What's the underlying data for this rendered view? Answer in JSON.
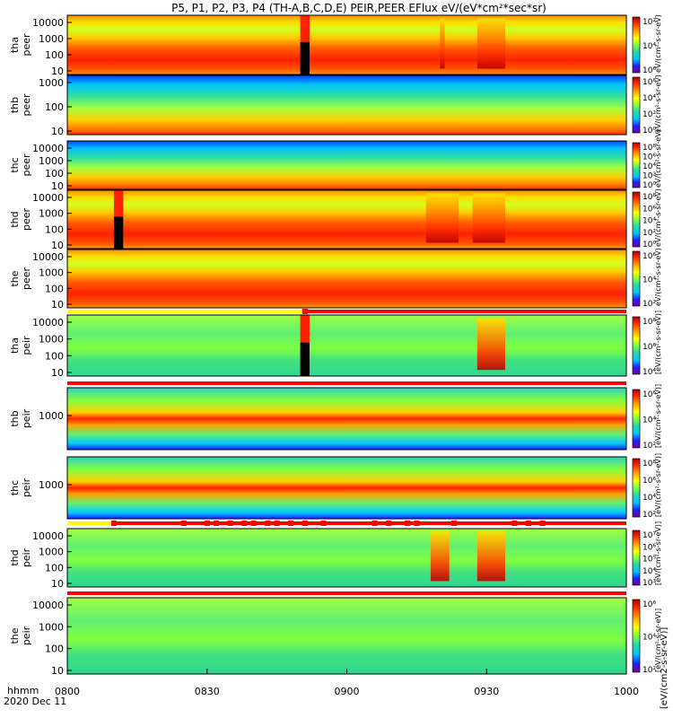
{
  "title": "P5, P1, P2, P3, P4 (TH-A,B,C,D,E) PEIR,PEER EFlux eV/(eV*cm²*sec*sr)",
  "time_axis": {
    "label": "hhmm",
    "date": "2020 Dec 11",
    "range": [
      "0800",
      "1000"
    ],
    "tick_labels": [
      "0800",
      "0830",
      "0900",
      "0930",
      "1000"
    ]
  },
  "colorbar_labels": {
    "peer": "eV/(cm²-s-sr-eV)",
    "peir": "[eV/(cm²-s-sr-eV)]",
    "bottom_full": "[eV/(cm2-s-sr-eV)]"
  },
  "chart_data": [
    {
      "type": "heatmap",
      "probe": "tha",
      "species": "peer",
      "label_top": "tha",
      "label_bottom": "peer",
      "yscale": "log",
      "ytick_labels": [
        "10",
        "100",
        "1000",
        "10000"
      ],
      "colorbar_ticks": [
        "10²",
        "10⁴",
        "10⁶"
      ],
      "gaps": [
        {
          "start": "0850",
          "end": "0852"
        }
      ],
      "bursts": [
        {
          "start": "0920",
          "end": "0921"
        },
        {
          "start": "0928",
          "end": "0934"
        }
      ]
    },
    {
      "type": "heatmap",
      "probe": "thb",
      "species": "peer",
      "label_top": "thb",
      "label_bottom": "peer",
      "yscale": "log",
      "ytick_labels": [
        "10",
        "100",
        "1000"
      ],
      "colorbar_ticks": [
        "10⁶",
        "10⁴",
        "10²",
        "10⁰"
      ]
    },
    {
      "type": "heatmap",
      "probe": "thc",
      "species": "peer",
      "label_top": "thc",
      "label_bottom": "peer",
      "yscale": "log",
      "ytick_labels": [
        "10",
        "100",
        "1000",
        "10000"
      ],
      "colorbar_ticks": [
        "10⁸",
        "10⁶",
        "10⁴",
        "10²",
        "10⁰"
      ]
    },
    {
      "type": "heatmap",
      "probe": "thd",
      "species": "peer",
      "label_top": "thd",
      "label_bottom": "peer",
      "yscale": "log",
      "ytick_labels": [
        "10",
        "100",
        "1000",
        "10000"
      ],
      "colorbar_ticks": [
        "10⁸",
        "10⁶",
        "10⁴",
        "10²",
        "10⁰"
      ],
      "gaps": [
        {
          "start": "0810",
          "end": "0812"
        }
      ],
      "bursts": [
        {
          "start": "0917",
          "end": "0924"
        },
        {
          "start": "0927",
          "end": "0934"
        }
      ]
    },
    {
      "type": "heatmap",
      "probe": "the",
      "species": "peer",
      "label_top": "the",
      "label_bottom": "peer",
      "yscale": "log",
      "ytick_labels": [
        "10",
        "100",
        "1000",
        "10000"
      ],
      "colorbar_ticks": [
        "10⁶",
        "10⁴",
        "10²"
      ]
    },
    {
      "type": "heatmap",
      "probe": "tha",
      "species": "peir",
      "label_top": "tha",
      "label_bottom": "peir",
      "yscale": "log",
      "ytick_labels": [
        "10",
        "100",
        "1000",
        "10000"
      ],
      "colorbar_ticks": [
        "10⁸",
        "10⁶",
        "10⁴"
      ],
      "gaps": [
        {
          "start": "0850",
          "end": "0852"
        }
      ],
      "bursts": [
        {
          "start": "0928",
          "end": "0934"
        }
      ]
    },
    {
      "type": "heatmap",
      "probe": "thb",
      "species": "peir",
      "label_top": "thb",
      "label_bottom": "peir",
      "yscale": "log",
      "ytick_labels": [
        "1000"
      ],
      "colorbar_ticks": [
        "10⁶",
        "10⁴",
        "10²"
      ]
    },
    {
      "type": "heatmap",
      "probe": "thc",
      "species": "peir",
      "label_top": "thc",
      "label_bottom": "peir",
      "yscale": "log",
      "ytick_labels": [
        "1000"
      ],
      "colorbar_ticks": [
        "10⁸",
        "10⁶",
        "10⁴",
        "10²"
      ]
    },
    {
      "type": "heatmap",
      "probe": "thd",
      "species": "peir",
      "label_top": "thd",
      "label_bottom": "peir",
      "yscale": "log",
      "ytick_labels": [
        "10",
        "100",
        "1000",
        "10000"
      ],
      "colorbar_ticks": [
        "10⁷",
        "10⁶",
        "10⁵",
        "10⁴",
        "10³"
      ],
      "bursts": [
        {
          "start": "0918",
          "end": "0922"
        },
        {
          "start": "0928",
          "end": "0934"
        }
      ]
    },
    {
      "type": "heatmap",
      "probe": "the",
      "species": "peir",
      "label_top": "the",
      "label_bottom": "peir",
      "yscale": "log",
      "ytick_labels": [
        "10",
        "100",
        "1000",
        "10000"
      ],
      "colorbar_ticks": [
        "10⁶",
        "10⁴",
        "10²"
      ]
    }
  ],
  "mode_bars": [
    {
      "panel_above": 4,
      "yellow_end": "0851",
      "markers": [
        "0851"
      ]
    },
    {
      "panel_above": 6
    },
    {
      "panel_above": 7,
      "yellow_end": "0810",
      "markers": [
        "0810",
        "0825",
        "0830",
        "0832",
        "0835",
        "0838",
        "0840",
        "0843",
        "0845",
        "0848",
        "0851",
        "0855",
        "0906",
        "0909",
        "0913",
        "0915",
        "0923",
        "0936",
        "0939",
        "0942"
      ]
    },
    {
      "panel_above": 8
    }
  ],
  "colors": {
    "bar_red": "#ff0000",
    "bar_yellow": "#ffff00",
    "gap_black": "#000000",
    "scale": [
      "#7a00a0",
      "#1f1fff",
      "#00c8ff",
      "#2cd7a0",
      "#80ff40",
      "#ffff00",
      "#ffa000",
      "#ff3000",
      "#b00000"
    ]
  }
}
